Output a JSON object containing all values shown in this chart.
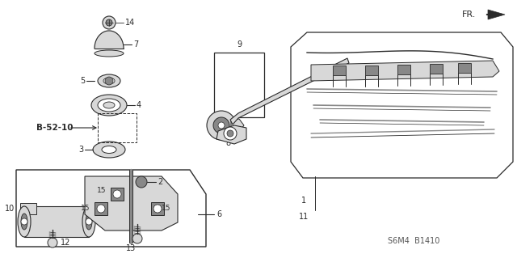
{
  "bg_color": "#ffffff",
  "line_color": "#2a2a2a",
  "gray_fill": "#b0b0b0",
  "light_gray": "#d8d8d8",
  "dark_gray": "#888888",
  "diagram_code": "S6M4  B1410",
  "fr_label": "FR.",
  "bold_label": "B-52-10",
  "figsize": [
    6.4,
    3.19
  ],
  "dpi": 100,
  "xlim": [
    0,
    640
  ],
  "ylim": [
    0,
    319
  ]
}
